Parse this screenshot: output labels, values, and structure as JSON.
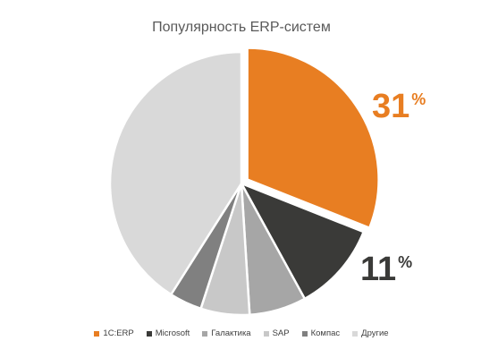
{
  "chart_data": {
    "type": "pie",
    "title": "Популярность ERP-систем",
    "categories": [
      "1С:ERP",
      "Microsoft",
      "Галактика",
      "SAP",
      "Компас",
      "Другие"
    ],
    "values": [
      31,
      11,
      7,
      6,
      4,
      41
    ],
    "colors": [
      "#e87e22",
      "#3a3a38",
      "#a6a6a6",
      "#c8c8c8",
      "#808080",
      "#d9d9d9"
    ],
    "start_angle_deg": 0,
    "direction": "clockwise",
    "exploded": [
      "1С:ERP"
    ],
    "legend": "bottom",
    "data_labels": [
      {
        "category": "1С:ERP",
        "value": "31",
        "suffix": "%"
      },
      {
        "category": "Microsoft",
        "value": "11",
        "suffix": "%"
      }
    ]
  }
}
